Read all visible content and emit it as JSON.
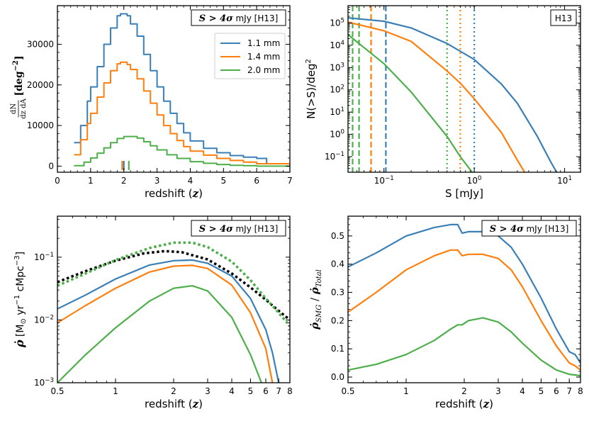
{
  "colors": {
    "c11": "#3a7fb5",
    "c14": "#ff7f0e",
    "c20": "#4daf4a",
    "black": "#000000"
  },
  "legend": [
    "1.1 mm",
    "1.4 mm",
    "2.0 mm"
  ],
  "chart_data": [
    {
      "type": "line",
      "panel": "top-left",
      "annotation": "S > 4σ mJy [H13]",
      "xlabel": "redshift (z)",
      "ylabel": "dN/(dz dA) [deg^-2]",
      "xlim": [
        0,
        7
      ],
      "ylim": [
        -1500,
        39500
      ],
      "xticks": [
        "0",
        "1",
        "2",
        "3",
        "4",
        "5",
        "6",
        "7"
      ],
      "yticks": [
        "0",
        "10000",
        "20000",
        "30000"
      ],
      "legend_position": "upper-right",
      "series": [
        {
          "name": "1.1 mm",
          "x": [
            0.5,
            0.7,
            0.9,
            1.0,
            1.2,
            1.4,
            1.6,
            1.8,
            1.9,
            2.0,
            2.1,
            2.2,
            2.4,
            2.6,
            2.8,
            3.0,
            3.2,
            3.4,
            3.6,
            3.8,
            4.0,
            4.4,
            4.8,
            5.2,
            5.6,
            6.0,
            6.3,
            7.0
          ],
          "y": [
            5800,
            10000,
            16000,
            19500,
            24500,
            30000,
            34000,
            37000,
            37500,
            37500,
            37000,
            35000,
            32000,
            27500,
            23500,
            19500,
            16000,
            13000,
            10500,
            8200,
            6200,
            4400,
            3300,
            2600,
            2200,
            1900,
            600,
            400
          ]
        },
        {
          "name": "1.4 mm",
          "x": [
            0.5,
            0.7,
            0.9,
            1.0,
            1.2,
            1.4,
            1.6,
            1.8,
            1.9,
            2.0,
            2.1,
            2.2,
            2.4,
            2.6,
            2.8,
            3.0,
            3.2,
            3.4,
            3.6,
            3.8,
            4.0,
            4.4,
            4.8,
            5.2,
            5.6,
            6.0,
            7.0
          ],
          "y": [
            2800,
            6500,
            10500,
            13000,
            17000,
            20500,
            23500,
            25200,
            25600,
            25600,
            25000,
            23800,
            21500,
            18500,
            15500,
            12600,
            10000,
            8000,
            6300,
            4800,
            3700,
            2700,
            1900,
            1400,
            1000,
            600,
            400
          ]
        },
        {
          "name": "2.0 mm",
          "x": [
            0.5,
            0.8,
            1.0,
            1.2,
            1.4,
            1.6,
            1.8,
            2.0,
            2.2,
            2.4,
            2.6,
            2.8,
            3.0,
            3.3,
            3.6,
            4.0,
            4.4,
            4.8,
            5.2,
            5.6,
            6.0,
            7.0
          ],
          "y": [
            100,
            1000,
            2000,
            3200,
            4500,
            5800,
            6800,
            7300,
            7300,
            6900,
            6000,
            5000,
            4000,
            2800,
            1900,
            1100,
            700,
            400,
            200,
            100,
            0,
            0
          ]
        }
      ],
      "median_ticks": [
        1.95,
        2.0,
        2.15
      ]
    },
    {
      "type": "line",
      "panel": "top-right",
      "annotation": "H13",
      "xlabel": "S [mJy]",
      "ylabel": "N(>S)/deg^2",
      "xscale": "log",
      "yscale": "log",
      "xlim": [
        0.04,
        15
      ],
      "ylim": [
        0.02,
        600000
      ],
      "xticks": [
        "10^-1",
        "10^0",
        "10^1"
      ],
      "yticks": [
        "10^-1",
        "10^0",
        "10^1",
        "10^2",
        "10^3",
        "10^4",
        "10^5"
      ],
      "series": [
        {
          "name": "1.1 mm",
          "x": [
            0.04,
            0.1,
            0.2,
            0.5,
            1,
            2,
            3,
            5,
            7,
            9
          ],
          "y": [
            170000,
            120000,
            60000,
            12000,
            2300,
            180,
            25,
            0.8,
            0.06,
            0.01
          ]
        },
        {
          "name": "1.4 mm",
          "x": [
            0.04,
            0.1,
            0.2,
            0.5,
            0.7,
            1,
            2,
            3,
            4
          ],
          "y": [
            110000,
            45000,
            15000,
            700,
            200,
            40,
            1.2,
            0.07,
            0.01
          ]
        },
        {
          "name": "2.0 mm",
          "x": [
            0.04,
            0.1,
            0.2,
            0.5,
            0.7,
            1,
            1.2
          ],
          "y": [
            30000,
            1500,
            80,
            0.8,
            0.1,
            0.015,
            0.01
          ]
        }
      ],
      "vlines": [
        {
          "series": "1.1 mm",
          "x": 0.105,
          "style": "dashed"
        },
        {
          "series": "1.4 mm",
          "x": 0.072,
          "style": "dashed"
        },
        {
          "series": "2.0 mm",
          "x": 0.053,
          "style": "dashed"
        },
        {
          "series": "1.1 mm",
          "x": 1.0,
          "style": "dotted"
        },
        {
          "series": "1.4 mm",
          "x": 0.7,
          "style": "dotted"
        },
        {
          "series": "2.0 mm",
          "x": 0.5,
          "style": "dotted"
        },
        {
          "series": "2.0 mm",
          "x": 0.045,
          "style": "dashed"
        }
      ]
    },
    {
      "type": "line",
      "panel": "bottom-left",
      "annotation": "S > 4σ mJy [H13]",
      "xlabel": "redshift (z)",
      "ylabel": "ρ̇ [M⊙ yr^-1 cMpc^-3]",
      "xscale": "log",
      "yscale": "log",
      "xlim": [
        0.5,
        8
      ],
      "ylim": [
        0.001,
        0.45
      ],
      "xticks": [
        "0.5",
        "1",
        "2",
        "3",
        "4",
        "5",
        "6",
        "7",
        "8"
      ],
      "yticks": [
        "10^-3",
        "10^-2",
        "10^-1"
      ],
      "series": [
        {
          "name": "1.1 mm",
          "x": [
            0.5,
            0.7,
            1,
            1.5,
            2,
            2.5,
            3,
            4,
            5,
            6,
            6.5,
            7
          ],
          "y": [
            0.015,
            0.025,
            0.045,
            0.075,
            0.088,
            0.09,
            0.08,
            0.05,
            0.022,
            0.007,
            0.003,
            0.001
          ]
        },
        {
          "name": "1.4 mm",
          "x": [
            0.5,
            0.7,
            1,
            1.5,
            2,
            2.5,
            3,
            4,
            5,
            6,
            6.5
          ],
          "y": [
            0.009,
            0.017,
            0.032,
            0.058,
            0.072,
            0.074,
            0.066,
            0.036,
            0.013,
            0.0035,
            0.001
          ]
        },
        {
          "name": "2.0 mm",
          "x": [
            0.5,
            0.7,
            1,
            1.5,
            2,
            2.5,
            3,
            4,
            5,
            5.7
          ],
          "y": [
            0.001,
            0.0028,
            0.0075,
            0.02,
            0.032,
            0.035,
            0.029,
            0.011,
            0.0028,
            0.001
          ]
        },
        {
          "name": "",
          "style": "dotted",
          "color": "black",
          "x": [
            0.5,
            0.7,
            1,
            1.4,
            1.8,
            2.2,
            3,
            4,
            5,
            6,
            7,
            8
          ],
          "y": [
            0.04,
            0.06,
            0.088,
            0.115,
            0.125,
            0.12,
            0.092,
            0.055,
            0.033,
            0.021,
            0.014,
            0.01
          ]
        },
        {
          "name": "",
          "style": "dotted",
          "color": "green",
          "x": [
            0.5,
            0.7,
            1,
            1.5,
            2,
            2.5,
            3,
            4,
            5,
            6,
            7,
            8
          ],
          "y": [
            0.035,
            0.055,
            0.09,
            0.14,
            0.17,
            0.17,
            0.145,
            0.085,
            0.043,
            0.022,
            0.013,
            0.008
          ]
        }
      ]
    },
    {
      "type": "line",
      "panel": "bottom-right",
      "annotation": "S > 4σ mJy [H13]",
      "xlabel": "redshift (z)",
      "ylabel": "ρ̇SMG / ρ̇Total",
      "xscale": "log",
      "xlim": [
        0.5,
        8
      ],
      "ylim": [
        -0.02,
        0.57
      ],
      "xticks": [
        "0.5",
        "1",
        "2",
        "3",
        "4",
        "5",
        "6",
        "7",
        "8"
      ],
      "yticks": [
        "0.0",
        "0.1",
        "0.2",
        "0.3",
        "0.4",
        "0.5"
      ],
      "series": [
        {
          "name": "1.1 mm",
          "x": [
            0.5,
            0.7,
            1,
            1.4,
            1.7,
            1.85,
            1.95,
            2.1,
            2.5,
            3,
            3.5,
            4,
            5,
            6,
            7,
            7.5,
            8
          ],
          "y": [
            0.39,
            0.44,
            0.5,
            0.53,
            0.54,
            0.54,
            0.51,
            0.515,
            0.515,
            0.5,
            0.46,
            0.4,
            0.28,
            0.17,
            0.09,
            0.08,
            0.05
          ]
        },
        {
          "name": "1.4 mm",
          "x": [
            0.5,
            0.7,
            1,
            1.4,
            1.7,
            1.85,
            1.95,
            2.1,
            2.5,
            3,
            3.5,
            4,
            5,
            6,
            7,
            7.5,
            8
          ],
          "y": [
            0.23,
            0.3,
            0.38,
            0.43,
            0.45,
            0.45,
            0.43,
            0.435,
            0.435,
            0.42,
            0.38,
            0.32,
            0.2,
            0.11,
            0.05,
            0.04,
            0.025
          ]
        },
        {
          "name": "2.0 mm",
          "x": [
            0.5,
            0.7,
            1,
            1.4,
            1.7,
            1.85,
            1.95,
            2.1,
            2.5,
            3,
            3.5,
            4,
            5,
            6,
            7,
            8
          ],
          "y": [
            0.025,
            0.045,
            0.08,
            0.13,
            0.17,
            0.185,
            0.185,
            0.2,
            0.21,
            0.195,
            0.16,
            0.12,
            0.06,
            0.025,
            0.01,
            0.005
          ]
        }
      ]
    }
  ]
}
